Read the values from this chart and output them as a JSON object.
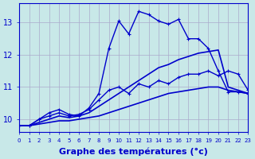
{
  "background_color": "#c8e8e8",
  "grid_color": "#aaaacc",
  "line_color": "#0000cc",
  "xlabel": "Graphe des températures (°c)",
  "xlabel_fontsize": 8,
  "yticks": [
    10,
    11,
    12,
    13
  ],
  "ylim": [
    9.6,
    13.6
  ],
  "xlim": [
    0,
    23
  ],
  "xtick_labels": [
    "0",
    "1",
    "2",
    "3",
    "4",
    "5",
    "6",
    "7",
    "8",
    "9",
    "10",
    "11",
    "12",
    "13",
    "14",
    "15",
    "16",
    "17",
    "18",
    "19",
    "20",
    "21",
    "22",
    "23"
  ],
  "series": [
    {
      "x": [
        0,
        1,
        2,
        3,
        4,
        5,
        6,
        7,
        8,
        9,
        10,
        11,
        12,
        13,
        14,
        15,
        16,
        17,
        18,
        19,
        20,
        21,
        22,
        23
      ],
      "y": [
        9.8,
        9.8,
        9.85,
        9.9,
        9.95,
        9.95,
        10.0,
        10.05,
        10.1,
        10.2,
        10.3,
        10.4,
        10.5,
        10.6,
        10.7,
        10.8,
        10.85,
        10.9,
        10.95,
        11.0,
        11.0,
        10.9,
        10.85,
        10.8
      ],
      "marker": null,
      "linewidth": 1.2
    },
    {
      "x": [
        0,
        1,
        2,
        3,
        4,
        5,
        6,
        7,
        8,
        9,
        10,
        11,
        12,
        13,
        14,
        15,
        16,
        17,
        18,
        19,
        20,
        21,
        22,
        23
      ],
      "y": [
        9.8,
        9.8,
        9.9,
        10.0,
        10.1,
        10.05,
        10.1,
        10.2,
        10.4,
        10.6,
        10.8,
        11.0,
        11.2,
        11.4,
        11.6,
        11.7,
        11.85,
        11.95,
        12.05,
        12.1,
        12.15,
        11.0,
        10.9,
        10.8
      ],
      "marker": null,
      "linewidth": 1.2
    },
    {
      "x": [
        0,
        1,
        2,
        3,
        4,
        5,
        6,
        7,
        8,
        9,
        10,
        11,
        12,
        13,
        14,
        15,
        16,
        17,
        18,
        19,
        20,
        21,
        22,
        23
      ],
      "y": [
        9.8,
        9.8,
        10.0,
        10.1,
        10.2,
        10.1,
        10.15,
        10.3,
        10.6,
        10.9,
        11.0,
        10.8,
        11.1,
        11.0,
        11.2,
        11.1,
        11.3,
        11.4,
        11.4,
        11.5,
        11.35,
        11.5,
        11.4,
        10.9
      ],
      "marker": "+",
      "linewidth": 1.0
    },
    {
      "x": [
        0,
        1,
        2,
        3,
        4,
        5,
        6,
        7,
        8,
        9,
        10,
        11,
        12,
        13,
        14,
        15,
        16,
        17,
        18,
        19,
        20,
        21,
        22,
        23
      ],
      "y": [
        9.8,
        9.8,
        10.0,
        10.2,
        10.3,
        10.15,
        10.1,
        10.35,
        10.8,
        12.2,
        13.05,
        12.65,
        13.35,
        13.25,
        13.05,
        12.95,
        13.1,
        12.5,
        12.5,
        12.2,
        11.5,
        10.85,
        10.85,
        10.8
      ],
      "marker": "+",
      "linewidth": 1.0
    }
  ]
}
